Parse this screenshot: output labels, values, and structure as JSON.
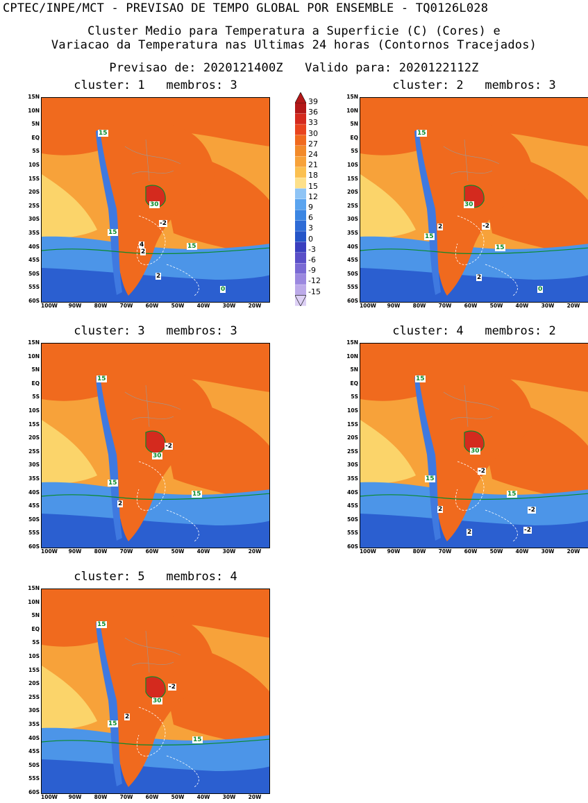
{
  "header": {
    "line1": "CPTEC/INPE/MCT - PREVISAO DE TEMPO GLOBAL POR ENSEMBLE - TQ0126L028",
    "line2": "Cluster Medio para Temperatura a Superficie (C) (Cores) e",
    "line3": "Variacao da Temperatura nas Ultimas 24 horas (Contornos Tracejados)",
    "line4": "Previsao de: 2020121400Z   Valido para: 2020122112Z"
  },
  "colors": {
    "land_hot": "#f06a1e",
    "ocean_warm": "#f7a23a",
    "pale": "#fbd46a",
    "cold_blue": "#4c95e8",
    "deep_blue": "#2b5fd0",
    "andes": "#3f79e0"
  },
  "colorbar": {
    "labels": [
      "39",
      "36",
      "33",
      "30",
      "27",
      "24",
      "21",
      "18",
      "15",
      "12",
      "9",
      "6",
      "3",
      "0",
      "-3",
      "-6",
      "-9",
      "-12",
      "-15"
    ],
    "colors": [
      "#b31818",
      "#d42a1e",
      "#e8441e",
      "#f06a1e",
      "#f28a2a",
      "#f7a23a",
      "#fbc050",
      "#fde08a",
      "#8ec4f5",
      "#5aa4ef",
      "#3b86e3",
      "#2e6bd6",
      "#2555c8",
      "#3a3fbf",
      "#5a4fc8",
      "#7a6ad4",
      "#9b88df",
      "#bcaae9",
      "#ddd0f5"
    ]
  },
  "lat_labels": [
    "15N",
    "10N",
    "5N",
    "EQ",
    "5S",
    "10S",
    "15S",
    "20S",
    "25S",
    "30S",
    "35S",
    "40S",
    "45S",
    "50S",
    "55S",
    "60S"
  ],
  "lon_labels": [
    "100W",
    "90W",
    "80W",
    "70W",
    "60W",
    "50W",
    "40W",
    "30W",
    "20W"
  ],
  "panels": [
    {
      "title": "cluster: 1   membros: 3",
      "labels": [
        {
          "t": "15",
          "g": true
        },
        {
          "t": "30",
          "g": true
        },
        {
          "t": "-2",
          "g": false
        },
        {
          "t": "15",
          "g": true
        },
        {
          "t": "4",
          "g": false
        },
        {
          "t": "2",
          "g": false
        },
        {
          "t": "15",
          "g": true
        },
        {
          "t": "2",
          "g": false
        },
        {
          "t": "0",
          "g": true
        }
      ]
    },
    {
      "title": "cluster: 2   membros: 3",
      "labels": [
        {
          "t": "15",
          "g": true
        },
        {
          "t": "30",
          "g": true
        },
        {
          "t": "2",
          "g": false
        },
        {
          "t": "-2",
          "g": false
        },
        {
          "t": "15",
          "g": true
        },
        {
          "t": "15",
          "g": true
        },
        {
          "t": "2",
          "g": false
        },
        {
          "t": "0",
          "g": true
        }
      ]
    },
    {
      "title": "cluster: 3   membros: 3",
      "labels": [
        {
          "t": "15",
          "g": true
        },
        {
          "t": "-2",
          "g": false
        },
        {
          "t": "30",
          "g": true
        },
        {
          "t": "15",
          "g": true
        },
        {
          "t": "15",
          "g": true
        },
        {
          "t": "2",
          "g": false
        }
      ]
    },
    {
      "title": "cluster: 4   membros: 2",
      "labels": [
        {
          "t": "15",
          "g": true
        },
        {
          "t": "30",
          "g": true
        },
        {
          "t": "-2",
          "g": false
        },
        {
          "t": "15",
          "g": true
        },
        {
          "t": "15",
          "g": true
        },
        {
          "t": "-2",
          "g": false
        },
        {
          "t": "2",
          "g": false
        },
        {
          "t": "2",
          "g": false
        },
        {
          "t": "-2",
          "g": false
        }
      ]
    },
    {
      "title": "cluster: 5   membros: 4",
      "labels": [
        {
          "t": "15",
          "g": true
        },
        {
          "t": "-2",
          "g": false
        },
        {
          "t": "30",
          "g": true
        },
        {
          "t": "2",
          "g": false
        },
        {
          "t": "15",
          "g": true
        },
        {
          "t": "15",
          "g": true
        }
      ]
    }
  ]
}
